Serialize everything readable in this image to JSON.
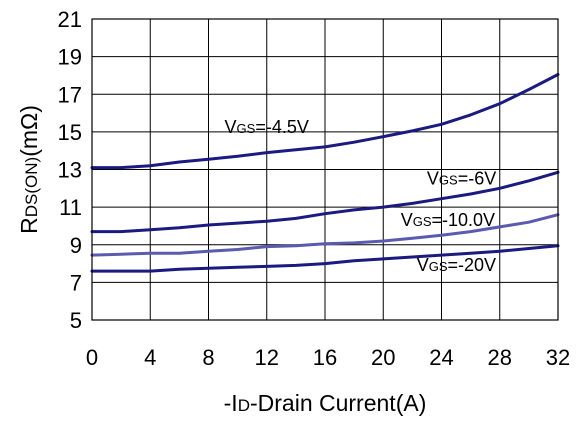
{
  "chart_data": {
    "type": "line",
    "xlabel_parts": {
      "prefix": "-I",
      "sub": "D",
      "suffix": "-Drain Current(A)"
    },
    "ylabel_parts": {
      "main": "R",
      "sub": "DS(ON)",
      "suffix": "(mΩ)"
    },
    "xlim": [
      0,
      32
    ],
    "ylim": [
      5,
      21
    ],
    "x_ticks": [
      0,
      4,
      8,
      12,
      16,
      20,
      24,
      28,
      32
    ],
    "y_ticks": [
      5,
      7,
      9,
      11,
      13,
      15,
      17,
      19,
      21
    ],
    "grid": true,
    "series": [
      {
        "name": "-4.5V",
        "label_parts": {
          "main": "V",
          "sub": "GS",
          "suffix": "=-4.5V"
        },
        "color": "#1a1a80",
        "x": [
          0,
          2,
          4,
          6,
          8,
          10,
          12,
          14,
          16,
          18,
          20,
          22,
          24,
          26,
          28,
          30,
          32
        ],
        "y": [
          13.1,
          13.1,
          13.2,
          13.4,
          13.55,
          13.7,
          13.9,
          14.05,
          14.2,
          14.45,
          14.75,
          15.05,
          15.4,
          15.9,
          16.5,
          17.25,
          18.05
        ]
      },
      {
        "name": "-6V",
        "label_parts": {
          "main": "V",
          "sub": "GS",
          "suffix": "=-6V"
        },
        "color": "#1a1a80",
        "x": [
          0,
          2,
          4,
          6,
          8,
          10,
          12,
          14,
          16,
          18,
          20,
          22,
          24,
          26,
          28,
          30,
          32
        ],
        "y": [
          9.7,
          9.7,
          9.8,
          9.9,
          10.05,
          10.15,
          10.25,
          10.4,
          10.65,
          10.85,
          11.0,
          11.2,
          11.45,
          11.7,
          12.0,
          12.4,
          12.85
        ]
      },
      {
        "name": "-10.0V",
        "label_parts": {
          "main": "V",
          "sub": "GS",
          "suffix": "=-10.0V"
        },
        "color": "#5a5ab0",
        "x": [
          0,
          2,
          4,
          6,
          8,
          10,
          12,
          14,
          16,
          18,
          20,
          22,
          24,
          26,
          28,
          30,
          32
        ],
        "y": [
          8.45,
          8.5,
          8.55,
          8.55,
          8.65,
          8.75,
          8.9,
          8.95,
          9.05,
          9.1,
          9.2,
          9.35,
          9.5,
          9.7,
          9.95,
          10.2,
          10.6
        ]
      },
      {
        "name": "-20V",
        "label_parts": {
          "main": "V",
          "sub": "GS",
          "suffix": "=-20V"
        },
        "color": "#1a1a80",
        "x": [
          0,
          2,
          4,
          6,
          8,
          10,
          12,
          14,
          16,
          18,
          20,
          22,
          24,
          26,
          28,
          30,
          32
        ],
        "y": [
          7.6,
          7.6,
          7.6,
          7.7,
          7.75,
          7.8,
          7.85,
          7.9,
          8.0,
          8.15,
          8.25,
          8.35,
          8.45,
          8.55,
          8.65,
          8.8,
          8.95
        ]
      }
    ]
  }
}
